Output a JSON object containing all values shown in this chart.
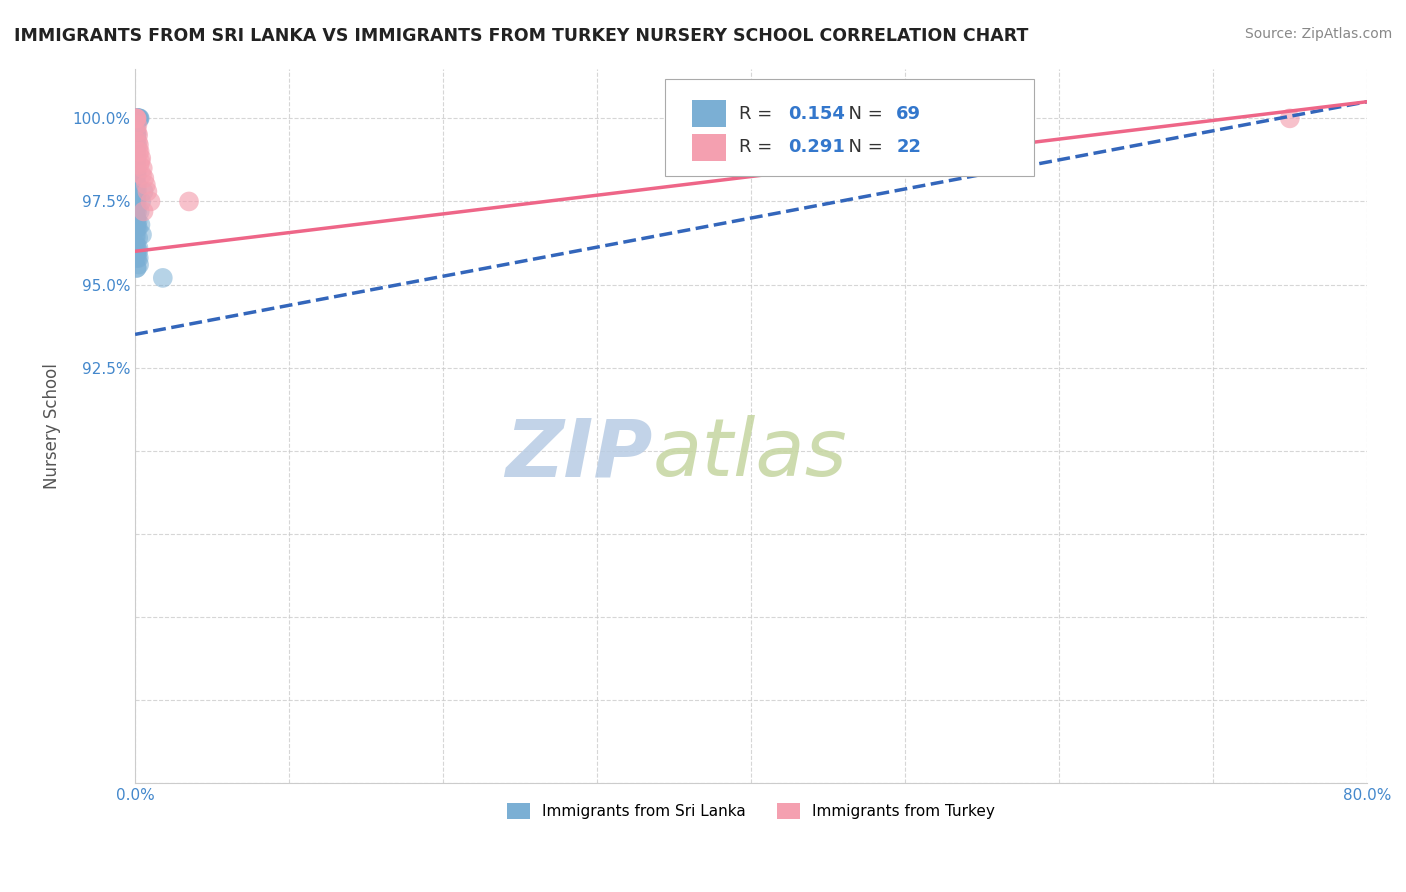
{
  "title": "IMMIGRANTS FROM SRI LANKA VS IMMIGRANTS FROM TURKEY NURSERY SCHOOL CORRELATION CHART",
  "source_text": "Source: ZipAtlas.com",
  "ylabel": "Nursery School",
  "xlim": [
    0.0,
    80.0
  ],
  "ylim": [
    80.0,
    101.5
  ],
  "xticks": [
    0.0,
    10.0,
    20.0,
    30.0,
    40.0,
    50.0,
    60.0,
    70.0,
    80.0
  ],
  "yticks": [
    80.0,
    82.5,
    85.0,
    87.5,
    90.0,
    92.5,
    95.0,
    97.5,
    100.0
  ],
  "xticklabels": [
    "0.0%",
    "",
    "",
    "",
    "",
    "",
    "",
    "",
    "80.0%"
  ],
  "yticklabels": [
    "",
    "",
    "",
    "",
    "",
    "92.5%",
    "95.0%",
    "97.5%",
    "100.0%"
  ],
  "sri_lanka_R": 0.154,
  "sri_lanka_N": 69,
  "turkey_R": 0.291,
  "turkey_N": 22,
  "sri_lanka_color": "#7bafd4",
  "turkey_color": "#f4a0b0",
  "sri_lanka_line_color": "#3366bb",
  "turkey_line_color": "#ee6688",
  "watermark_text1": "ZIP",
  "watermark_text2": "atlas",
  "watermark_color1": "#b8cce8",
  "watermark_color2": "#c8d8a0",
  "legend_label_sri_lanka": "Immigrants from Sri Lanka",
  "legend_label_turkey": "Immigrants from Turkey",
  "background_color": "#ffffff",
  "grid_color": "#cccccc",
  "title_color": "#222222",
  "axis_label_color": "#555555",
  "tick_color": "#4488cc",
  "sri_lanka_x": [
    0.05,
    0.08,
    0.1,
    0.12,
    0.15,
    0.18,
    0.2,
    0.22,
    0.25,
    0.28,
    0.3,
    0.05,
    0.08,
    0.1,
    0.12,
    0.05,
    0.07,
    0.09,
    0.11,
    0.13,
    0.15,
    0.05,
    0.06,
    0.08,
    0.1,
    0.05,
    0.07,
    0.06,
    0.08,
    0.1,
    0.05,
    0.06,
    0.05,
    0.06,
    0.07,
    0.08,
    0.09,
    0.1,
    0.12,
    0.14,
    0.16,
    0.18,
    0.2,
    0.22,
    0.24,
    0.26,
    0.05,
    0.05,
    0.06,
    0.07,
    0.08,
    0.05,
    0.06,
    0.07,
    0.08,
    0.09,
    0.1,
    0.05,
    0.06,
    0.07,
    0.4,
    0.55,
    0.35,
    0.3,
    0.45,
    0.2,
    0.15,
    0.1,
    1.8
  ],
  "sri_lanka_y": [
    100.0,
    100.0,
    100.0,
    100.0,
    100.0,
    100.0,
    100.0,
    100.0,
    100.0,
    100.0,
    100.0,
    99.8,
    99.5,
    99.5,
    99.2,
    99.0,
    98.8,
    98.5,
    98.3,
    98.0,
    97.8,
    97.5,
    97.2,
    97.0,
    96.8,
    96.5,
    96.2,
    96.0,
    95.8,
    95.5,
    99.7,
    99.4,
    99.1,
    98.8,
    98.6,
    98.3,
    98.0,
    97.7,
    97.5,
    97.2,
    96.9,
    96.7,
    96.4,
    96.1,
    95.8,
    95.6,
    99.6,
    99.3,
    99.0,
    98.7,
    98.4,
    98.1,
    97.8,
    97.6,
    97.3,
    97.0,
    96.7,
    96.4,
    96.1,
    95.9,
    97.5,
    97.8,
    96.8,
    97.2,
    96.5,
    96.0,
    95.8,
    95.5,
    95.2
  ],
  "turkey_x": [
    0.05,
    0.08,
    0.1,
    0.15,
    0.2,
    0.25,
    0.3,
    0.4,
    0.5,
    0.6,
    0.7,
    0.8,
    1.0,
    0.35,
    0.45,
    0.55,
    3.5,
    0.12,
    0.18,
    0.22,
    0.28,
    75.0
  ],
  "turkey_y": [
    100.0,
    100.0,
    100.0,
    99.8,
    99.5,
    99.2,
    99.0,
    98.8,
    98.5,
    98.2,
    98.0,
    97.8,
    97.5,
    98.7,
    98.3,
    97.2,
    97.5,
    99.6,
    99.3,
    99.0,
    98.6,
    100.0
  ]
}
